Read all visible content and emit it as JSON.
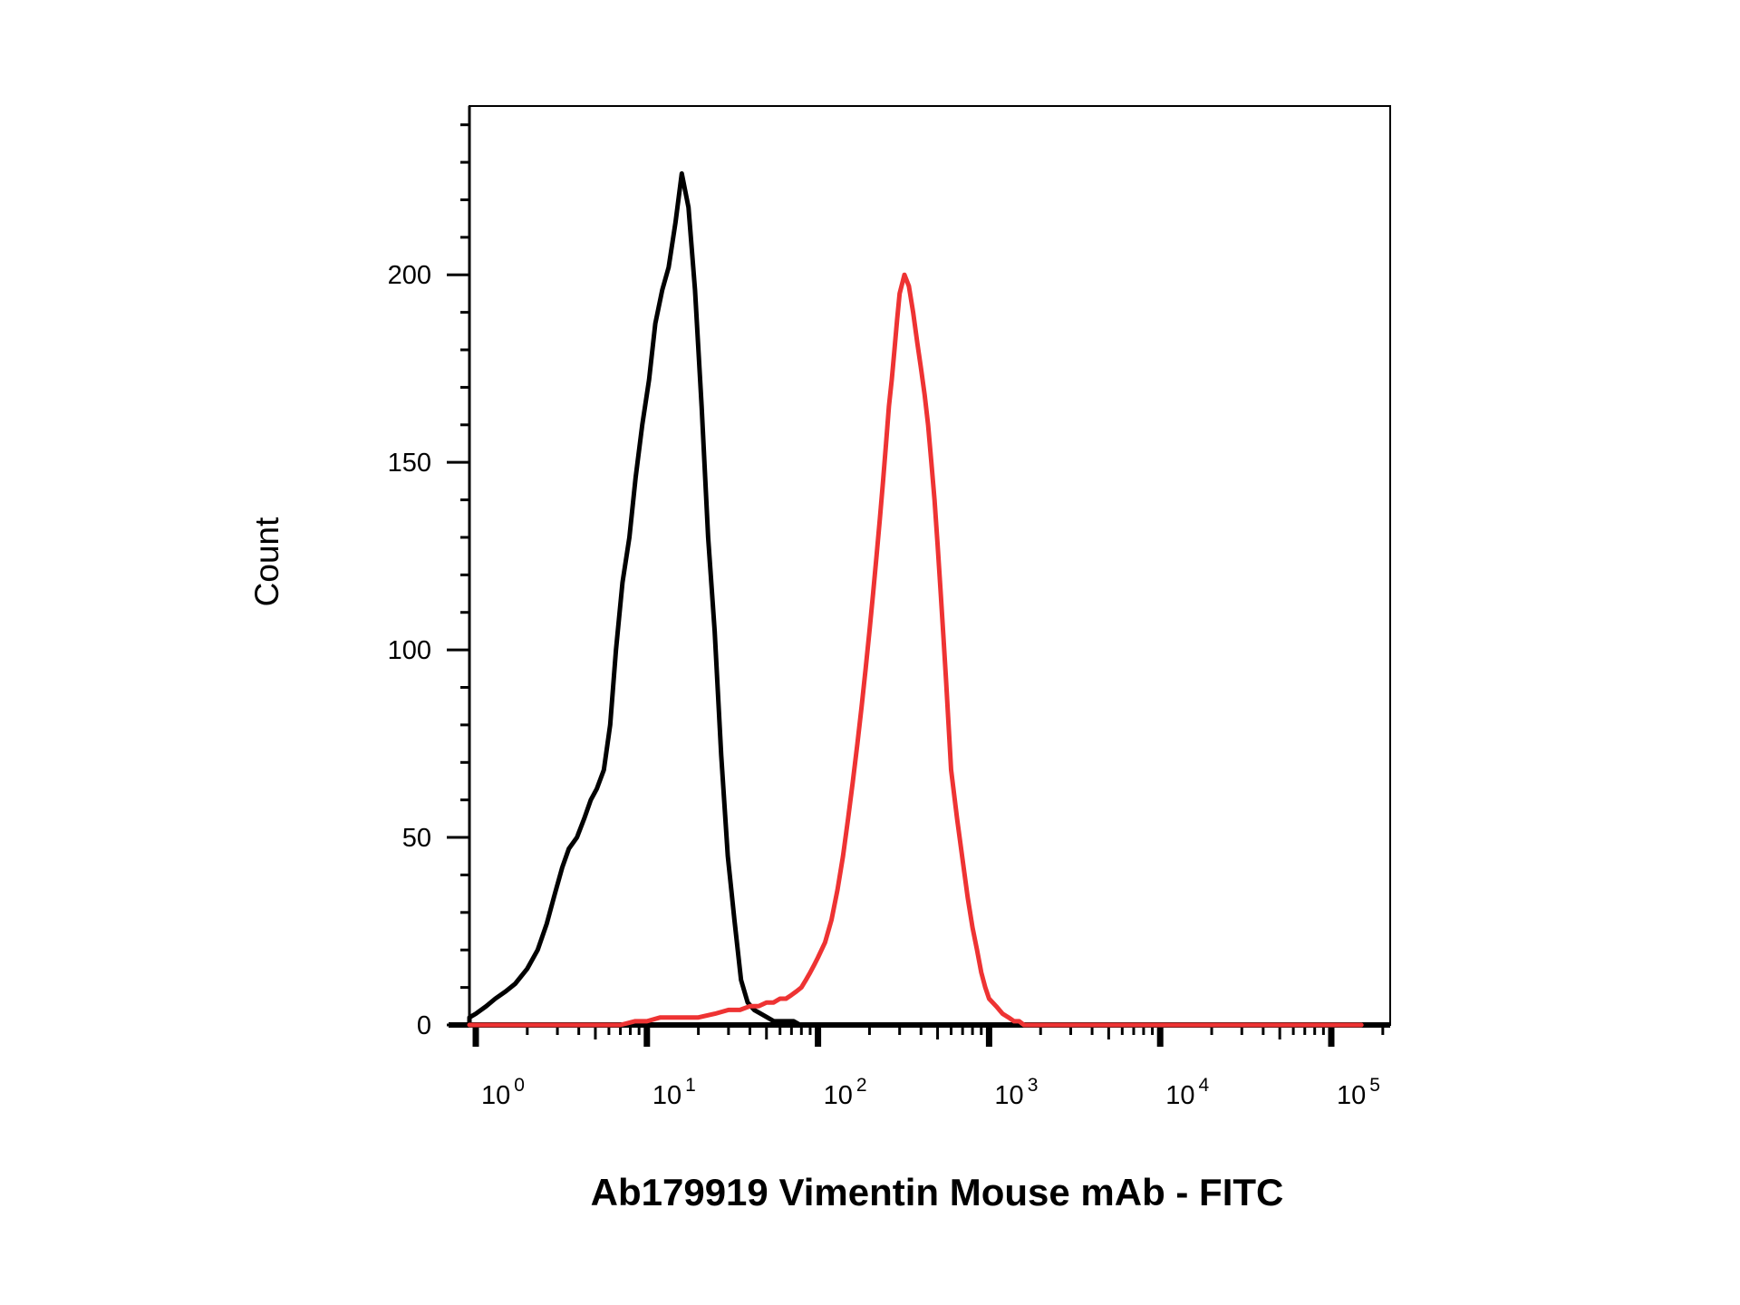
{
  "chart_data": {
    "type": "line",
    "xlabel": "Ab179919 Vimentin Mouse mAb - FITC",
    "ylabel": "Count",
    "x_scale": "log",
    "xlim": [
      0.66,
      150000
    ],
    "ylim": [
      0,
      245
    ],
    "grid": false,
    "x_ticks": [
      {
        "base": "10",
        "exp": "0",
        "value": 1
      },
      {
        "base": "10",
        "exp": "1",
        "value": 10
      },
      {
        "base": "10",
        "exp": "2",
        "value": 100
      },
      {
        "base": "10",
        "exp": "3",
        "value": 1000
      },
      {
        "base": "10",
        "exp": "4",
        "value": 10000
      },
      {
        "base": "10",
        "exp": "5",
        "value": 100000
      }
    ],
    "y_ticks": [
      {
        "label": "0",
        "value": 0
      },
      {
        "label": "50",
        "value": 50
      },
      {
        "label": "100",
        "value": 100
      },
      {
        "label": "150",
        "value": 150
      },
      {
        "label": "200",
        "value": 200
      }
    ],
    "series": [
      {
        "color": "#000000",
        "x": [
          0.63,
          0.7,
          0.8,
          0.9,
          1.0,
          1.15,
          1.3,
          1.5,
          1.7,
          2.0,
          2.3,
          2.6,
          2.9,
          3.2,
          3.5,
          3.9,
          4.3,
          4.7,
          5.1,
          5.6,
          6.1,
          6.6,
          7.2,
          7.9,
          8.6,
          9.4,
          10.3,
          11.2,
          12.3,
          13.4,
          14.7,
          16.0,
          17.5,
          19.1,
          20.9,
          22.8,
          24.9,
          27.2,
          29.7,
          32.5,
          35.5,
          38.8,
          42.4,
          46.3,
          50.6,
          55.3,
          60.4,
          66.0,
          72.1,
          78.8,
          86.1,
          94.1,
          102.8,
          112.3,
          130,
          200,
          400,
          1000,
          5000,
          20000,
          100000,
          150000
        ],
        "values": [
          0,
          0,
          1,
          2,
          3,
          5,
          7,
          9,
          11,
          15,
          20,
          27,
          35,
          42,
          47,
          50,
          55,
          60,
          63,
          68,
          80,
          100,
          118,
          130,
          146,
          160,
          172,
          187,
          196,
          202,
          214,
          227,
          218,
          196,
          165,
          130,
          105,
          72,
          45,
          28,
          12,
          6,
          4,
          3,
          2,
          1,
          1,
          1,
          1,
          0,
          0,
          0,
          0,
          0,
          0,
          0,
          0,
          0,
          0,
          0,
          0,
          0
        ]
      },
      {
        "color": "#ee3333",
        "x": [
          0.63,
          1.0,
          2.0,
          4.0,
          7.0,
          8.5,
          10,
          12,
          14,
          17,
          20,
          25,
          30,
          35,
          40,
          45,
          50,
          55,
          60,
          65,
          70,
          75,
          80,
          85,
          90,
          95,
          100,
          110,
          120,
          130,
          140,
          150,
          160,
          170,
          180,
          190,
          200,
          210,
          220,
          230,
          240,
          250,
          260,
          270,
          280,
          290,
          300,
          320,
          340,
          360,
          380,
          400,
          420,
          440,
          460,
          480,
          500,
          520,
          540,
          560,
          580,
          600,
          650,
          700,
          750,
          800,
          850,
          900,
          950,
          1000,
          1100,
          1200,
          1300,
          1400,
          1500,
          1600,
          1700,
          1800,
          1900,
          2000,
          2200,
          2500,
          3000,
          5000,
          10000,
          50000,
          150000
        ],
        "values": [
          0,
          0,
          0,
          0,
          0,
          1,
          1,
          2,
          2,
          2,
          2,
          3,
          4,
          4,
          5,
          5,
          6,
          6,
          7,
          7,
          8,
          9,
          10,
          12,
          14,
          16,
          18,
          22,
          28,
          36,
          45,
          55,
          65,
          75,
          85,
          95,
          105,
          115,
          125,
          135,
          145,
          155,
          165,
          172,
          180,
          188,
          195,
          200,
          197,
          190,
          182,
          175,
          168,
          160,
          150,
          140,
          128,
          116,
          104,
          92,
          80,
          68,
          55,
          44,
          34,
          26,
          20,
          14,
          10,
          7,
          5,
          3,
          2,
          1,
          1,
          0,
          0,
          0,
          0,
          0,
          0,
          0,
          0,
          0,
          0,
          0,
          0
        ]
      }
    ]
  }
}
